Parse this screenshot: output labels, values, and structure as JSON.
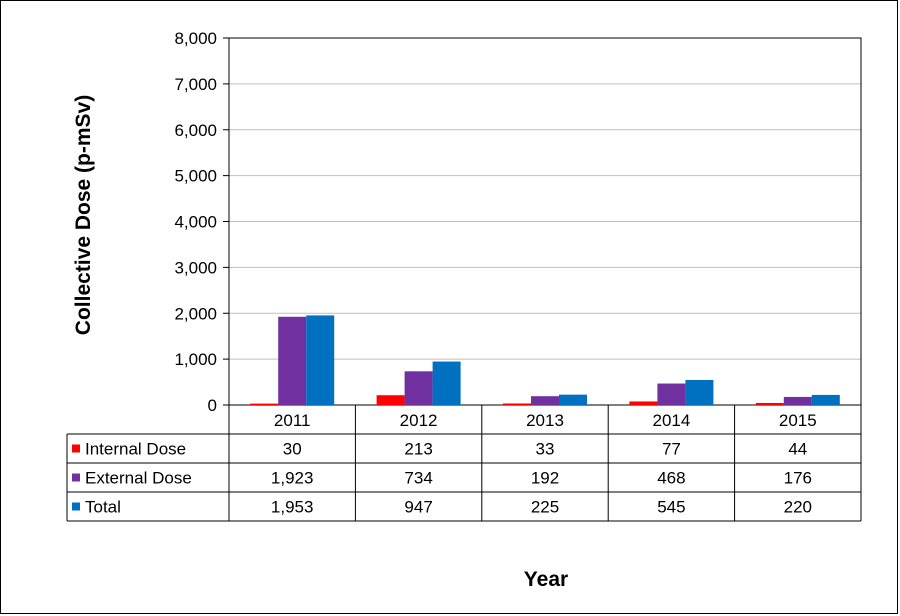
{
  "chart_data": {
    "type": "bar",
    "title": "",
    "xlabel": "Year",
    "ylabel": "Collective Dose (p-mSv)",
    "ylim": [
      0,
      8000
    ],
    "yticks": [
      0,
      1000,
      2000,
      3000,
      4000,
      5000,
      6000,
      7000,
      8000
    ],
    "ytick_labels": [
      "0",
      "1,000",
      "2,000",
      "3,000",
      "4,000",
      "5,000",
      "6,000",
      "7,000",
      "8,000"
    ],
    "grid": true,
    "legend": "data-table-left",
    "categories": [
      "2011",
      "2012",
      "2013",
      "2014",
      "2015"
    ],
    "series": [
      {
        "name": "Internal Dose",
        "color": "#ff0000",
        "values": [
          30,
          213,
          33,
          77,
          44
        ],
        "labels": [
          "30",
          "213",
          "33",
          "77",
          "44"
        ]
      },
      {
        "name": "External Dose",
        "color": "#7030a0",
        "values": [
          1923,
          734,
          192,
          468,
          176
        ],
        "labels": [
          "1,923",
          "734",
          "192",
          "468",
          "176"
        ]
      },
      {
        "name": "Total",
        "color": "#0070c0",
        "values": [
          1953,
          947,
          225,
          545,
          220
        ],
        "labels": [
          "1,953",
          "947",
          "225",
          "545",
          "220"
        ]
      }
    ]
  }
}
